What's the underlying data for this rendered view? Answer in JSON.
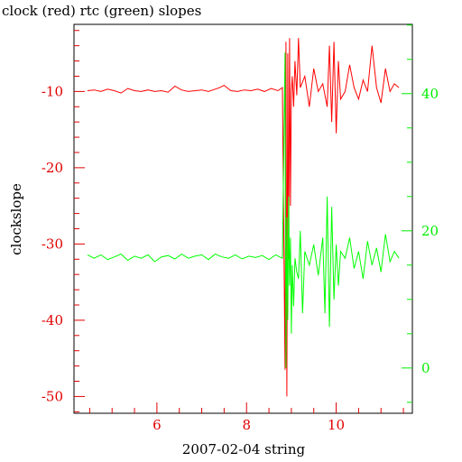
{
  "chart_data": {
    "type": "line",
    "title": "clock (red) rtc (green) slopes",
    "xlabel": "2007-02-04 string",
    "ylabel": "clockslope",
    "y2label": "",
    "xlim": [
      4.15,
      11.7
    ],
    "ylim": [
      -52.2,
      -1.2
    ],
    "y2lim": [
      -6.6,
      50.1
    ],
    "x_ticks": [
      6,
      8,
      10
    ],
    "y_ticks": [
      -10,
      -20,
      -30,
      -40,
      -50
    ],
    "y2_ticks": [
      40,
      20,
      0
    ],
    "grid": false,
    "colors": {
      "left_axis": "#e00000",
      "right_axis": "#00ee00",
      "series_clock": "#ff0000",
      "series_rtc": "#00ff00",
      "frame": "#000000"
    },
    "series": [
      {
        "axis": "left",
        "color": "#ff0000",
        "x": [
          4.45,
          4.6,
          4.75,
          4.9,
          5.05,
          5.2,
          5.35,
          5.5,
          5.65,
          5.8,
          5.95,
          6.1,
          6.25,
          6.4,
          6.55,
          6.7,
          6.85,
          7.0,
          7.15,
          7.3,
          7.4,
          7.5,
          7.65,
          7.8,
          7.95,
          8.1,
          8.25,
          8.4,
          8.55,
          8.7,
          8.8,
          8.86,
          8.88,
          8.9,
          8.92,
          8.94,
          8.96,
          8.98,
          9.0,
          9.02,
          9.05,
          9.08,
          9.12,
          9.16,
          9.2,
          9.3,
          9.4,
          9.5,
          9.6,
          9.7,
          9.8,
          9.85,
          9.9,
          9.95,
          10.0,
          10.05,
          10.1,
          10.2,
          10.3,
          10.4,
          10.5,
          10.6,
          10.7,
          10.8,
          10.9,
          11.0,
          11.1,
          11.2,
          11.3,
          11.4
        ],
        "y": [
          -9.9,
          -9.8,
          -10.0,
          -9.7,
          -9.9,
          -10.2,
          -9.6,
          -9.9,
          -10.0,
          -9.8,
          -10.0,
          -9.9,
          -10.1,
          -9.3,
          -9.8,
          -10.0,
          -9.9,
          -9.8,
          -10.0,
          -9.7,
          -9.5,
          -9.2,
          -9.9,
          -10.0,
          -9.8,
          -9.9,
          -9.7,
          -10.0,
          -9.6,
          -9.9,
          -9.5,
          -46.5,
          -3.5,
          -50.0,
          -5.0,
          -32.0,
          -3.0,
          -25.0,
          -10.0,
          -8.0,
          -12.0,
          -6.0,
          -10.5,
          -3.0,
          -9.5,
          -8.0,
          -12.0,
          -7.0,
          -10.0,
          -9.0,
          -12.0,
          -4.0,
          -14.0,
          -3.5,
          -15.5,
          -6.0,
          -11.0,
          -10.0,
          -6.5,
          -9.5,
          -11.0,
          -8.5,
          -10.0,
          -4.0,
          -9.5,
          -11.5,
          -7.0,
          -10.0,
          -9.0,
          -9.5
        ]
      },
      {
        "axis": "right",
        "color": "#00ff00",
        "x": [
          4.45,
          4.6,
          4.75,
          4.9,
          5.05,
          5.2,
          5.35,
          5.5,
          5.65,
          5.8,
          5.95,
          6.1,
          6.25,
          6.4,
          6.55,
          6.7,
          6.85,
          7.0,
          7.15,
          7.3,
          7.45,
          7.6,
          7.75,
          7.9,
          8.05,
          8.2,
          8.35,
          8.5,
          8.65,
          8.8,
          8.86,
          8.88,
          8.9,
          8.92,
          8.94,
          8.96,
          8.98,
          9.0,
          9.02,
          9.05,
          9.08,
          9.12,
          9.16,
          9.2,
          9.25,
          9.3,
          9.4,
          9.5,
          9.6,
          9.7,
          9.75,
          9.8,
          9.85,
          9.9,
          9.95,
          10.0,
          10.05,
          10.1,
          10.2,
          10.3,
          10.4,
          10.5,
          10.6,
          10.7,
          10.8,
          10.9,
          11.0,
          11.1,
          11.2,
          11.3,
          11.4
        ],
        "y": [
          16.5,
          16.0,
          16.5,
          15.8,
          16.2,
          16.6,
          15.7,
          16.3,
          16.0,
          16.5,
          15.5,
          16.2,
          16.4,
          15.9,
          16.6,
          16.0,
          16.3,
          16.5,
          15.8,
          16.6,
          16.2,
          16.0,
          16.5,
          15.9,
          16.3,
          16.1,
          16.4,
          15.8,
          16.5,
          16.0,
          46.0,
          0.0,
          22.0,
          7.0,
          25.0,
          12.0,
          19.0,
          5.0,
          15.0,
          9.0,
          16.0,
          14.0,
          13.0,
          20.0,
          8.0,
          17.0,
          15.0,
          18.0,
          13.5,
          19.0,
          8.0,
          25.0,
          6.0,
          23.5,
          10.0,
          18.0,
          12.0,
          17.0,
          16.0,
          19.0,
          14.5,
          17.0,
          13.0,
          18.5,
          15.0,
          17.5,
          14.0,
          19.5,
          15.5,
          17.0,
          16.0
        ]
      }
    ]
  }
}
